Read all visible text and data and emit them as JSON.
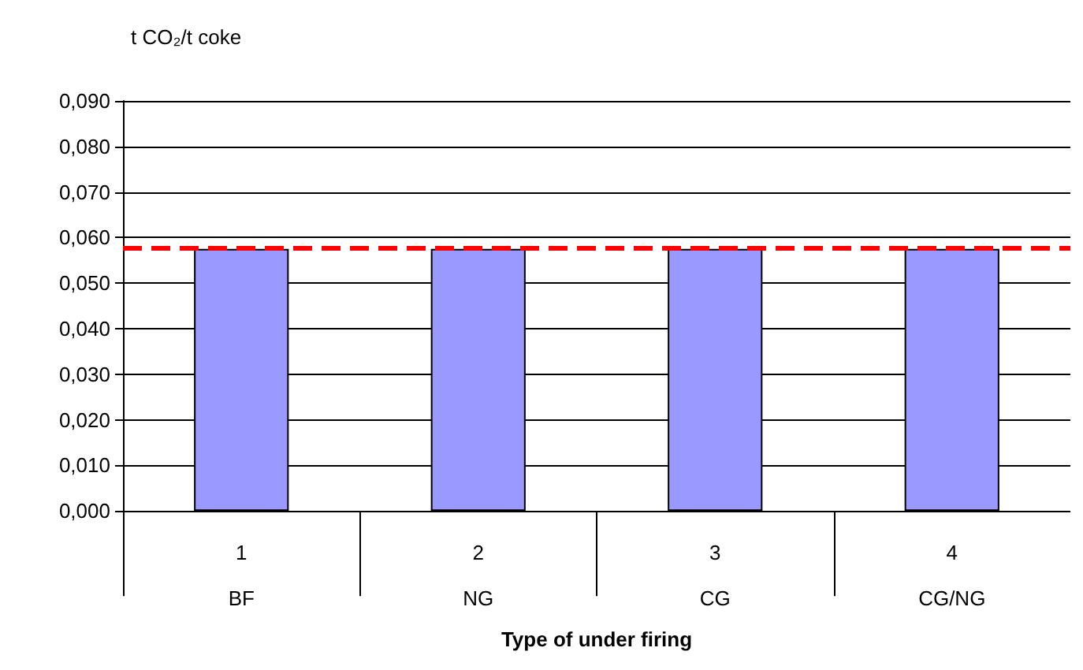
{
  "chart_data": {
    "type": "bar",
    "ylabel": "t CO₂/t coke",
    "xlabel": "Type of under firing",
    "categories": [
      "1\nBF",
      "2\nNG",
      "3\nCG",
      "4\nCG/NG"
    ],
    "values": [
      0.0575,
      0.0575,
      0.0575,
      0.0575
    ],
    "color": "#9999ff",
    "ylim": [
      0,
      0.09
    ],
    "yticks": [
      {
        "value": 0,
        "label": "0,000"
      },
      {
        "value": 0.01,
        "label": "0,010"
      },
      {
        "value": 0.02,
        "label": "0,020"
      },
      {
        "value": 0.03,
        "label": "0,030"
      },
      {
        "value": 0.04,
        "label": "0,040"
      },
      {
        "value": 0.05,
        "label": "0,050"
      },
      {
        "value": 0.06,
        "label": "0,060"
      },
      {
        "value": 0.07,
        "label": "0,070"
      },
      {
        "value": 0.08,
        "label": "0,080"
      },
      {
        "value": 0.09,
        "label": "0,090"
      }
    ],
    "ref_lines": [
      {
        "axis": "y",
        "value": 0.0576,
        "color": "#ff0000",
        "line_style": "dashed"
      }
    ],
    "grid": "y"
  }
}
